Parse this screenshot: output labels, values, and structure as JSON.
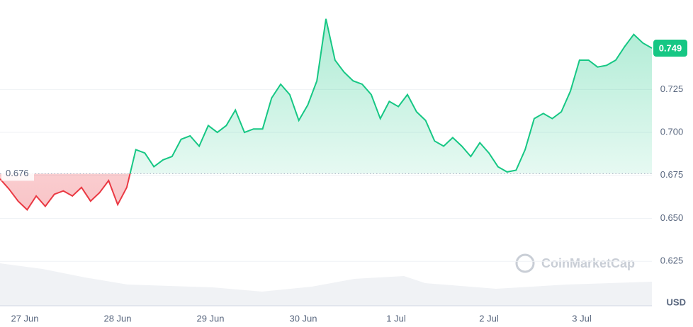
{
  "chart_data": {
    "type": "line",
    "xtick_labels": [
      "27 Jun",
      "28 Jun",
      "29 Jun",
      "30 Jun",
      "1 Jul",
      "2 Jul",
      "3 Jul"
    ],
    "values": [
      0.673,
      0.667,
      0.66,
      0.655,
      0.663,
      0.657,
      0.664,
      0.666,
      0.663,
      0.668,
      0.66,
      0.665,
      0.672,
      0.658,
      0.668,
      0.69,
      0.688,
      0.68,
      0.684,
      0.686,
      0.696,
      0.698,
      0.692,
      0.704,
      0.7,
      0.704,
      0.713,
      0.7,
      0.702,
      0.702,
      0.72,
      0.728,
      0.722,
      0.707,
      0.716,
      0.73,
      0.766,
      0.742,
      0.735,
      0.73,
      0.728,
      0.722,
      0.708,
      0.718,
      0.715,
      0.722,
      0.712,
      0.707,
      0.695,
      0.692,
      0.697,
      0.692,
      0.686,
      0.694,
      0.688,
      0.68,
      0.677,
      0.678,
      0.69,
      0.708,
      0.711,
      0.708,
      0.712,
      0.724,
      0.742,
      0.742,
      0.738,
      0.739,
      0.742,
      0.75,
      0.757,
      0.752,
      0.749
    ],
    "ylim": [
      0.6,
      0.777
    ],
    "yticks": [
      0.625,
      {
        "value": 0.65,
        "label": "0.650"
      },
      0.675,
      {
        "value": 0.7,
        "label": "0.700"
      },
      0.725
    ],
    "baseline": 0.676,
    "current_price": 0.749,
    "currency": "USD",
    "watermark": "CoinMarketCap",
    "up_color": "#16c784",
    "down_color": "#ea3943",
    "grid": true
  }
}
